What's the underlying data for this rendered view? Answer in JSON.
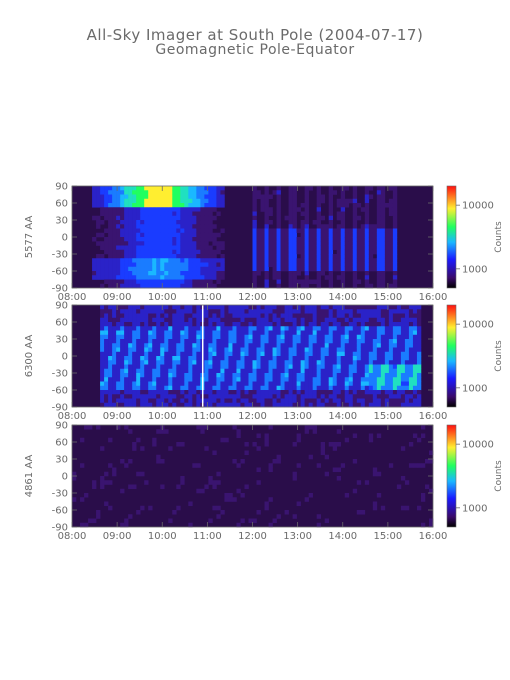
{
  "title": "All-Sky Imager at South Pole (2004-07-17)",
  "subtitle": "Geomagnetic Pole-Equator",
  "chart_data": [
    {
      "type": "heatmap",
      "ylabel": "5577 AA",
      "x_ticks": [
        "08:00",
        "09:00",
        "10:00",
        "11:00",
        "12:00",
        "13:00",
        "14:00",
        "15:00",
        "16:00"
      ],
      "xlim": [
        "08:00",
        "16:00"
      ],
      "y_ticks": [
        90,
        60,
        30,
        0,
        -30,
        -60,
        -90
      ],
      "ylim": [
        -90,
        90
      ],
      "colorbar": {
        "label": "Counts",
        "ticks": [
          10000,
          1000
        ],
        "tick_labels": [
          "10000",
          "1000"
        ],
        "scale": "log"
      },
      "notes": "Strong green-yellow emission near 60-90 from 08:40 to 11:00; broad blue band 09:00-11:00; vertical streaks 12:00-15:30."
    },
    {
      "type": "heatmap",
      "ylabel": "6300 AA",
      "x_ticks": [
        "08:00",
        "09:00",
        "10:00",
        "11:00",
        "12:00",
        "13:00",
        "14:00",
        "15:00",
        "16:00"
      ],
      "xlim": [
        "08:00",
        "16:00"
      ],
      "y_ticks": [
        90,
        60,
        30,
        0,
        -30,
        -60,
        -90
      ],
      "ylim": [
        -90,
        90
      ],
      "colorbar": {
        "label": "Counts",
        "ticks": [
          10000,
          1000
        ],
        "tick_labels": [
          "10000",
          "1000"
        ],
        "scale": "log"
      },
      "notes": "Blue structures 09:00-15:50; white vertical gap near 10:55."
    },
    {
      "type": "heatmap",
      "ylabel": "4861 AA",
      "x_ticks": [
        "08:00",
        "09:00",
        "10:00",
        "11:00",
        "12:00",
        "13:00",
        "14:00",
        "15:00",
        "16:00"
      ],
      "xlim": [
        "08:00",
        "16:00"
      ],
      "y_ticks": [
        90,
        60,
        30,
        0,
        -30,
        -60,
        -90
      ],
      "ylim": [
        -90,
        90
      ],
      "colorbar": {
        "label": "Counts",
        "ticks": [
          10000,
          1000
        ],
        "tick_labels": [
          "10000",
          "1000"
        ],
        "scale": "log"
      },
      "notes": "Mostly low counts (dark purple) with faint features."
    }
  ],
  "colors": {
    "axis": "#6a6a6a",
    "background_low": "#2a0d4a",
    "blue": "#1a3cff",
    "cyan": "#1ab8ff",
    "green": "#20ff60",
    "yellow": "#ffee30"
  }
}
